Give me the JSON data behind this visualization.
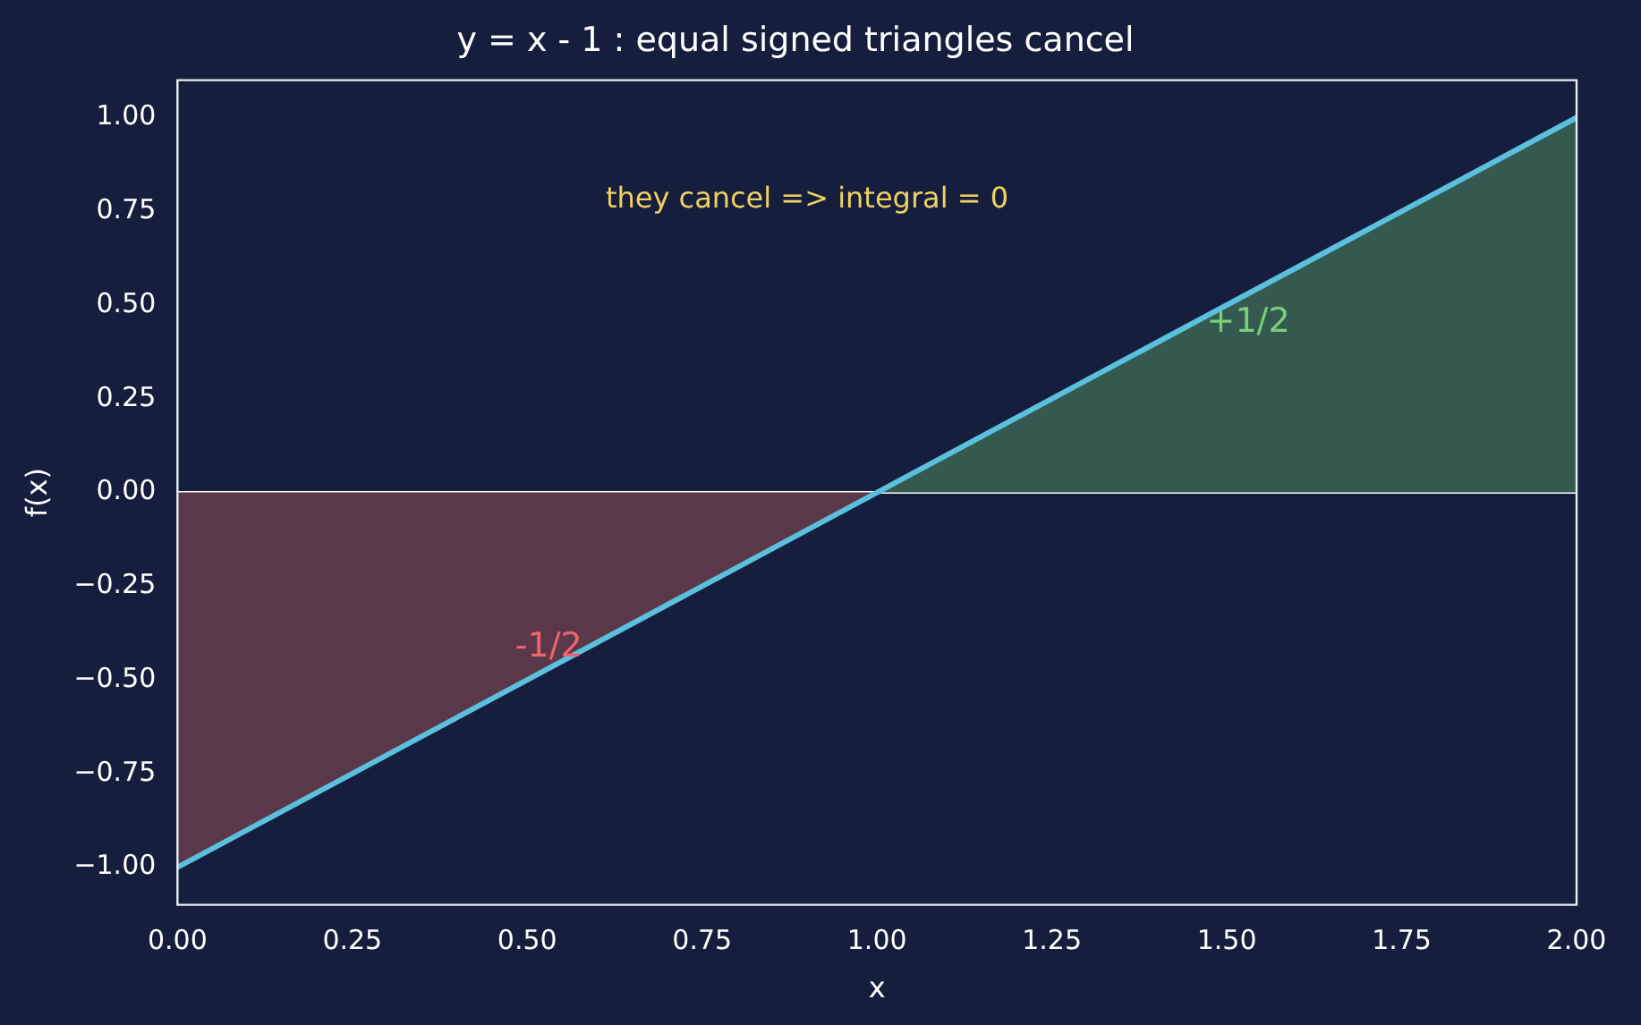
{
  "chart_data": {
    "type": "line",
    "title": "y = x - 1 : equal signed triangles cancel",
    "xlabel": "x",
    "ylabel": "f(x)",
    "series": [
      {
        "type": "area",
        "name": "-1/2",
        "color": "#5b3849",
        "x": [
          0,
          1
        ],
        "values": [
          -1,
          0
        ]
      },
      {
        "type": "area",
        "name": "+1/2",
        "color": "#345a50",
        "x": [
          1,
          2
        ],
        "values": [
          0,
          1
        ]
      },
      {
        "color": "#5bc0de",
        "x": [
          0,
          2
        ],
        "values": [
          -1,
          1
        ]
      }
    ],
    "marker": "none",
    "grid": false,
    "legend": false,
    "xlim": [
      0,
      2
    ],
    "ylim": [
      -1.1,
      1.1
    ],
    "xticks": [
      {
        "value": 0,
        "label": "0.00"
      },
      {
        "value": 0.25,
        "label": "0.25"
      },
      {
        "value": 0.5,
        "label": "0.50"
      },
      {
        "value": 0.75,
        "label": "0.75"
      },
      {
        "value": 1,
        "label": "1.00"
      },
      {
        "value": 1.25,
        "label": "1.25"
      },
      {
        "value": 1.5,
        "label": "1.50"
      },
      {
        "value": 1.75,
        "label": "1.75"
      },
      {
        "value": 2,
        "label": "2.00"
      }
    ],
    "yticks": [
      {
        "value": -1,
        "label": "−1.00"
      },
      {
        "value": -0.75,
        "label": "−0.75"
      },
      {
        "value": -0.5,
        "label": "−0.50"
      },
      {
        "value": -0.25,
        "label": "−0.25"
      },
      {
        "value": 0,
        "label": "0.00"
      },
      {
        "value": 0.25,
        "label": "0.25"
      },
      {
        "value": 0.5,
        "label": "0.50"
      },
      {
        "value": 0.75,
        "label": "0.75"
      },
      {
        "value": 1,
        "label": "1.00"
      }
    ],
    "ref_lines": [
      {
        "axis": "y",
        "value": 0,
        "color": "#ffffff"
      }
    ],
    "annotations": [
      "they cancel => integral = 0"
    ]
  }
}
